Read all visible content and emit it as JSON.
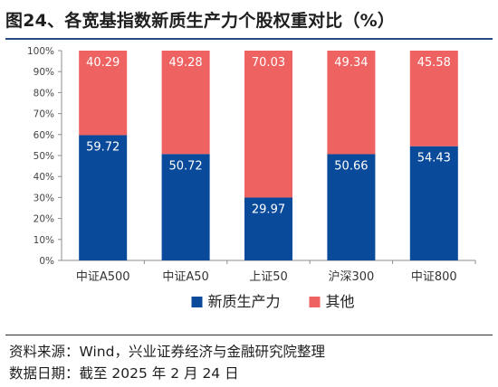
{
  "title": "图24、各宽基指数新质生产力个股权重对比（%）",
  "source_text": "资料来源：Wind，兴业证券经济与金融研究院整理",
  "date_text": "数据日期：截至 2025 年 2 月 24 日",
  "colors": {
    "series0": "#0a4a9a",
    "series1": "#ee6262",
    "axis": "#8c8c8c",
    "rule": "#2a4a83"
  },
  "chart_data": {
    "type": "bar",
    "stacked": true,
    "percent_axis": true,
    "categories": [
      "中证A500",
      "中证A50",
      "上证50",
      "沪深300",
      "中证800"
    ],
    "series": [
      {
        "name": "新质生产力",
        "values": [
          59.72,
          50.72,
          29.97,
          50.66,
          54.43
        ]
      },
      {
        "name": "其他",
        "values": [
          40.29,
          49.28,
          70.03,
          49.34,
          45.58
        ]
      }
    ],
    "ylim": [
      0,
      100
    ],
    "yticks": [
      "0%",
      "10%",
      "20%",
      "30%",
      "40%",
      "50%",
      "60%",
      "70%",
      "80%",
      "90%",
      "100%"
    ],
    "grid": false,
    "legend": "bottom"
  }
}
